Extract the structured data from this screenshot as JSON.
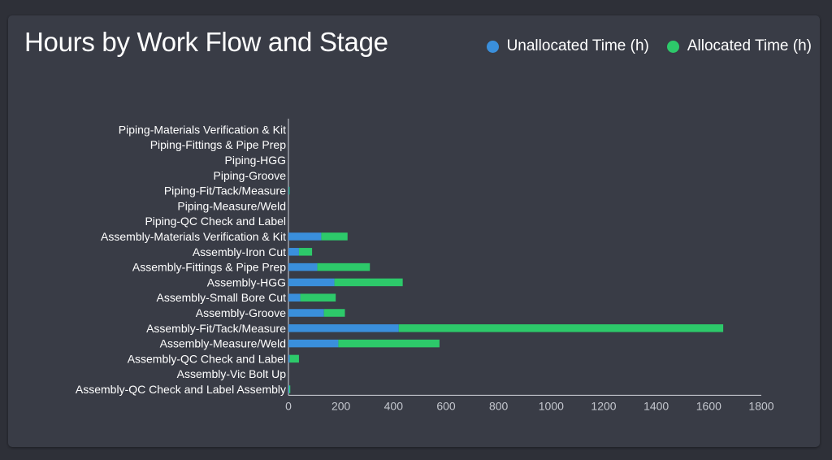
{
  "title": "Hours by Work Flow and Stage",
  "legend": {
    "unallocated": "Unallocated Time (h)",
    "allocated": "Allocated Time (h)"
  },
  "colors": {
    "unallocated": "#3a8fdc",
    "allocated": "#2dc96a",
    "background": "#2e3038",
    "card": "#393c46",
    "axis": "#d0d2d8"
  },
  "chart_data": {
    "type": "bar",
    "orientation": "horizontal",
    "stacked": true,
    "title": "Hours by Work Flow and Stage",
    "xlabel": "",
    "ylabel": "",
    "xlim": [
      0,
      1800
    ],
    "xticks": [
      0,
      200,
      400,
      600,
      800,
      1000,
      1200,
      1400,
      1600,
      1800
    ],
    "grid": false,
    "legend_position": "top-right",
    "categories": [
      "Piping-Materials Verification & Kit",
      "Piping-Fittings & Pipe Prep",
      "Piping-HGG",
      "Piping-Groove",
      "Piping-Fit/Tack/Measure",
      "Piping-Measure/Weld",
      "Piping-QC Check and Label",
      "Assembly-Materials Verification & Kit",
      "Assembly-Iron Cut",
      "Assembly-Fittings & Pipe Prep",
      "Assembly-HGG",
      "Assembly-Small Bore Cut",
      "Assembly-Groove",
      "Assembly-Fit/Tack/Measure",
      "Assembly-Measure/Weld",
      "Assembly-QC Check and Label",
      "Assembly-Vic Bolt Up",
      "Assembly-QC Check and Label Assembly"
    ],
    "series": [
      {
        "name": "Unallocated Time (h)",
        "values": [
          0,
          0,
          0,
          0,
          2,
          0,
          0,
          125,
          40,
          110,
          175,
          45,
          135,
          420,
          190,
          5,
          0,
          3
        ]
      },
      {
        "name": "Allocated Time (h)",
        "values": [
          0,
          0,
          0,
          0,
          2,
          0,
          0,
          100,
          50,
          200,
          260,
          135,
          80,
          1235,
          385,
          35,
          0,
          4
        ]
      }
    ]
  }
}
